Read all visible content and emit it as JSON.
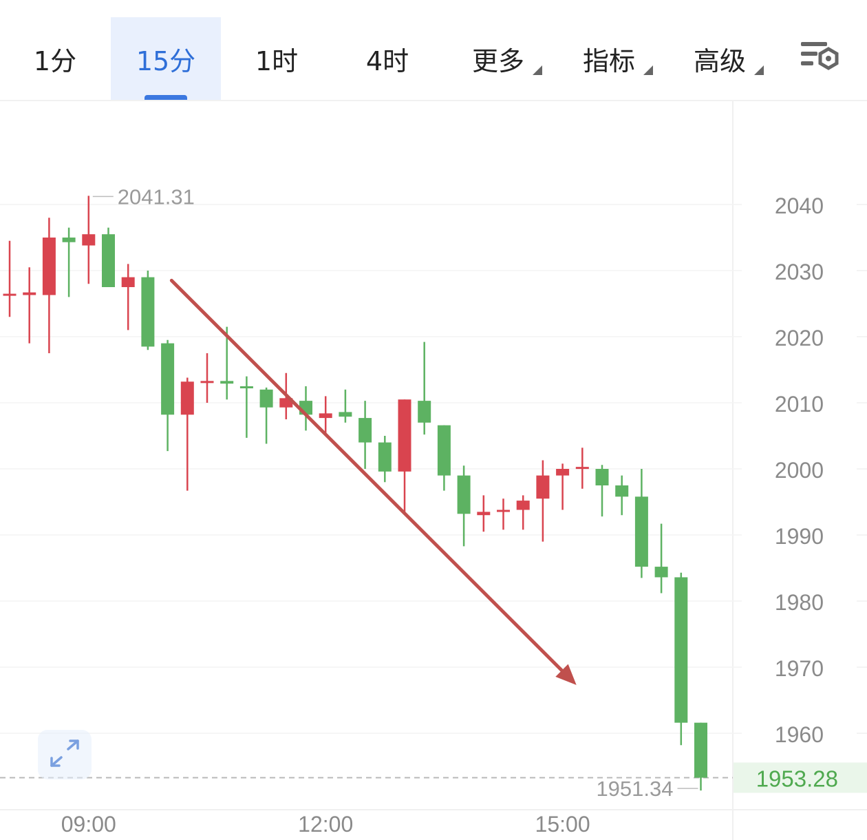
{
  "toolbar": {
    "tabs": [
      {
        "label": "1分",
        "active": false
      },
      {
        "label": "15分",
        "active": true
      },
      {
        "label": "1时",
        "active": false
      },
      {
        "label": "4时",
        "active": false
      },
      {
        "label": "更多",
        "dropdown": true
      },
      {
        "label": "指标",
        "dropdown": true
      },
      {
        "label": "高级",
        "dropdown": true
      }
    ],
    "settings_icon": "chart-settings-icon",
    "accent": "#2f6fd8"
  },
  "expand_icon": "expand-icon",
  "chart_data": {
    "type": "candlestick",
    "interval": "15分",
    "colors": {
      "up": "#d9444f",
      "down": "#5db262",
      "arrow": "#c0504d",
      "last_price": "#4fa94f"
    },
    "x_tick_labels": [
      {
        "label": "09:00",
        "index": 4
      },
      {
        "label": "12:00",
        "index": 16
      },
      {
        "label": "15:00",
        "index": 28
      }
    ],
    "y_ticks": [
      2040,
      2030,
      2020,
      2010,
      2000,
      1990,
      1980,
      1970,
      1960
    ],
    "ylim": [
      1949.5,
      2055.2
    ],
    "high_label": {
      "value": "2041.31",
      "index": 4
    },
    "low_label": {
      "value": "1951.34",
      "index": 35
    },
    "last_price": "1953.28",
    "trend_arrow": {
      "from": {
        "index": 8.2,
        "price": 2028.5
      },
      "to": {
        "index": 28.7,
        "price": 1967.3
      }
    },
    "candles": [
      {
        "o": 2026.5,
        "h": 2034.5,
        "l": 2023.0,
        "c": 2026.5
      },
      {
        "o": 2026.3,
        "h": 2030.5,
        "l": 2019.0,
        "c": 2026.7
      },
      {
        "o": 2026.3,
        "h": 2038.0,
        "l": 2017.5,
        "c": 2035.0
      },
      {
        "o": 2035.0,
        "h": 2036.5,
        "l": 2026.0,
        "c": 2034.3
      },
      {
        "o": 2033.8,
        "h": 2041.31,
        "l": 2028.0,
        "c": 2035.5
      },
      {
        "o": 2035.5,
        "h": 2036.5,
        "l": 2027.5,
        "c": 2027.5
      },
      {
        "o": 2027.5,
        "h": 2031.0,
        "l": 2021.0,
        "c": 2029.0
      },
      {
        "o": 2029.0,
        "h": 2030.0,
        "l": 2018.0,
        "c": 2018.5
      },
      {
        "o": 2019.0,
        "h": 2019.5,
        "l": 2002.7,
        "c": 2008.2
      },
      {
        "o": 2008.2,
        "h": 2013.8,
        "l": 1996.7,
        "c": 2013.2
      },
      {
        "o": 2013.2,
        "h": 2017.5,
        "l": 2010.0,
        "c": 2013.3
      },
      {
        "o": 2013.3,
        "h": 2021.5,
        "l": 2010.5,
        "c": 2012.9
      },
      {
        "o": 2012.5,
        "h": 2014.0,
        "l": 2004.7,
        "c": 2012.2
      },
      {
        "o": 2012.0,
        "h": 2012.3,
        "l": 2003.8,
        "c": 2009.3
      },
      {
        "o": 2009.3,
        "h": 2014.5,
        "l": 2007.5,
        "c": 2010.7
      },
      {
        "o": 2010.3,
        "h": 2012.5,
        "l": 2005.8,
        "c": 2008.2
      },
      {
        "o": 2007.7,
        "h": 2011.0,
        "l": 2005.0,
        "c": 2008.4
      },
      {
        "o": 2008.6,
        "h": 2012.0,
        "l": 2007.0,
        "c": 2007.9
      },
      {
        "o": 2007.7,
        "h": 2010.3,
        "l": 2000.0,
        "c": 2004.0
      },
      {
        "o": 2004.0,
        "h": 2005.0,
        "l": 1998.0,
        "c": 1999.6
      },
      {
        "o": 1999.6,
        "h": 2010.5,
        "l": 1993.5,
        "c": 2010.5
      },
      {
        "o": 2010.3,
        "h": 2019.2,
        "l": 2005.2,
        "c": 2007.0
      },
      {
        "o": 2006.6,
        "h": 2006.6,
        "l": 1996.7,
        "c": 1999.0
      },
      {
        "o": 1999.0,
        "h": 2000.5,
        "l": 1988.3,
        "c": 1993.2
      },
      {
        "o": 1993.0,
        "h": 1996.0,
        "l": 1990.5,
        "c": 1993.5
      },
      {
        "o": 1993.6,
        "h": 1995.5,
        "l": 1990.8,
        "c": 1993.8
      },
      {
        "o": 1993.8,
        "h": 1996.0,
        "l": 1990.8,
        "c": 1995.2
      },
      {
        "o": 1995.5,
        "h": 2001.3,
        "l": 1989.0,
        "c": 1999.0
      },
      {
        "o": 1999.0,
        "h": 2000.8,
        "l": 1993.8,
        "c": 2000.0
      },
      {
        "o": 2000.1,
        "h": 2003.2,
        "l": 1997.0,
        "c": 2000.3
      },
      {
        "o": 2000.0,
        "h": 2000.6,
        "l": 1992.8,
        "c": 1997.5
      },
      {
        "o": 1997.5,
        "h": 1999.0,
        "l": 1993.0,
        "c": 1995.8
      },
      {
        "o": 1995.8,
        "h": 2000.0,
        "l": 1983.5,
        "c": 1985.2
      },
      {
        "o": 1985.2,
        "h": 1991.7,
        "l": 1981.2,
        "c": 1983.6
      },
      {
        "o": 1983.6,
        "h": 1984.3,
        "l": 1958.2,
        "c": 1961.6
      },
      {
        "o": 1961.6,
        "h": 1961.6,
        "l": 1951.34,
        "c": 1953.28
      }
    ]
  }
}
